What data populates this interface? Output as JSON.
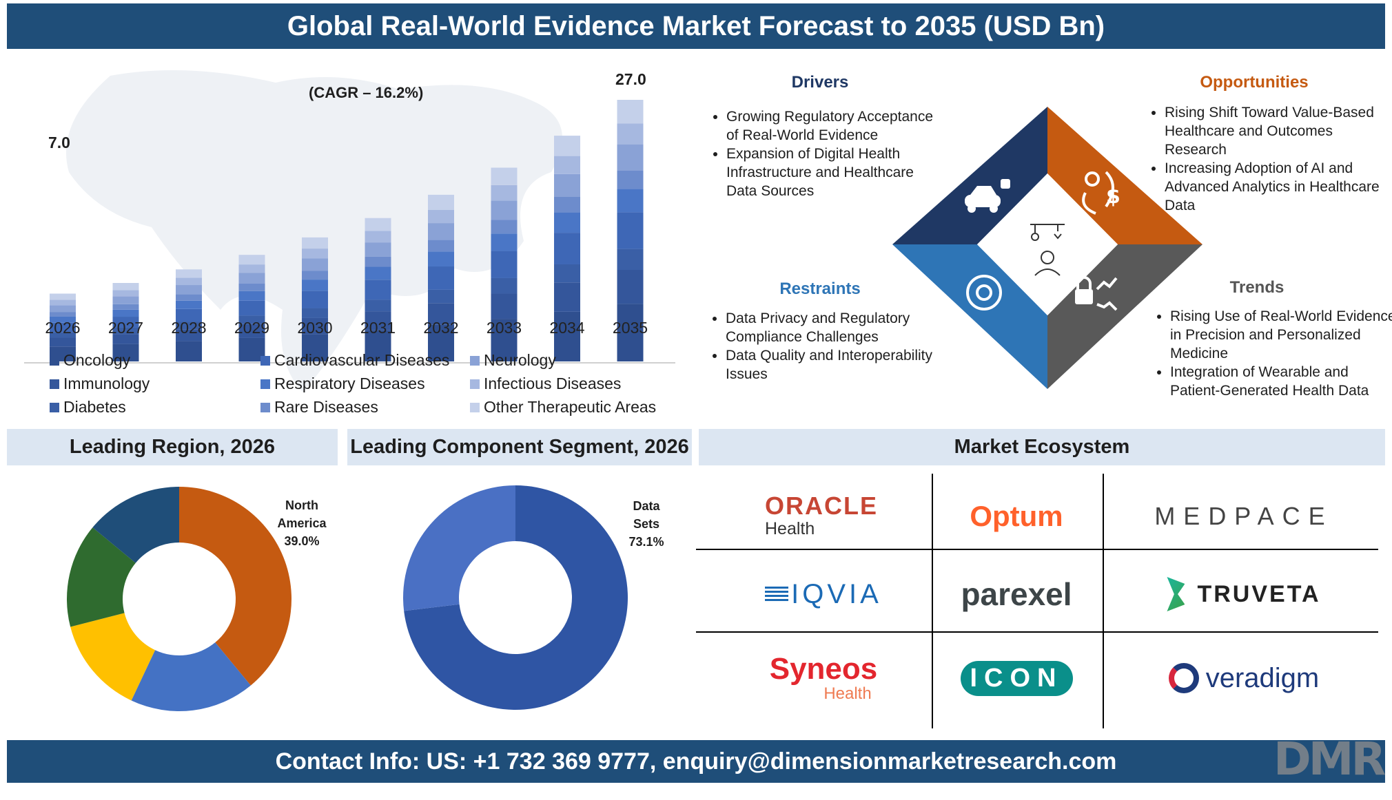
{
  "header": {
    "title": "Global Real-World Evidence Market Forecast to 2035 (USD Bn)"
  },
  "footer": {
    "contact": "Contact Info: US: +1 732 369 9777, enquiry@dimensionmarketresearch.com",
    "brand_logo": "DMR"
  },
  "chart_data": [
    {
      "type": "bar",
      "stacked": true,
      "categories": [
        "2026",
        "2027",
        "2028",
        "2029",
        "2030",
        "2031",
        "2032",
        "2033",
        "2034",
        "2035"
      ],
      "totals": [
        7.0,
        8.1,
        9.5,
        11.0,
        12.8,
        14.8,
        17.2,
        20.0,
        23.3,
        27.0
      ],
      "first_label": "7.0",
      "last_label": "27.0",
      "annotation": "(CAGR – 16.2%)",
      "series_names": [
        "Oncology",
        "Immunology",
        "Diabetes",
        "Cardiovascular Diseases",
        "Respiratory Diseases",
        "Rare Diseases",
        "Neurology",
        "Infectious Diseases",
        "Other Therapeutic Areas"
      ],
      "series_shares": [
        0.22,
        0.13,
        0.08,
        0.14,
        0.09,
        0.07,
        0.1,
        0.08,
        0.09
      ],
      "series_colors": [
        "#2f4f8f",
        "#34569b",
        "#3a5fa6",
        "#3e67b6",
        "#4a76c6",
        "#6d8ccc",
        "#8aa2d6",
        "#a6b8e0",
        "#c4d0ea"
      ],
      "legend_placement": "bottom",
      "grid": false
    },
    {
      "type": "pie",
      "donut": true,
      "title": "Leading Region, 2026",
      "slices": [
        {
          "name": "North America",
          "value": 39.0,
          "color": "#c55a11"
        },
        {
          "name": "",
          "value": 18.0,
          "color": "#4472c4"
        },
        {
          "name": "",
          "value": 14.0,
          "color": "#ffc000"
        },
        {
          "name": "",
          "value": 15.0,
          "color": "#2f6b2f"
        },
        {
          "name": "",
          "value": 14.0,
          "color": "#1f4e79"
        }
      ],
      "label_title": "North",
      "label_title2": "America",
      "label_value": "39.0%"
    },
    {
      "type": "pie",
      "donut": true,
      "title": "Leading Component Segment, 2026",
      "slices": [
        {
          "name": "Data Sets",
          "value": 73.1,
          "color": "#2f55a4"
        },
        {
          "name": "",
          "value": 26.9,
          "color": "#4a70c4"
        }
      ],
      "label_title": "Data",
      "label_title2": "Sets",
      "label_value": "73.1%"
    }
  ],
  "dynamics": {
    "drivers": {
      "title": "Drivers",
      "color": "#1f3864",
      "items": [
        "Growing Regulatory Acceptance of Real-World Evidence",
        "Expansion of Digital Health Infrastructure and Healthcare Data Sources"
      ]
    },
    "opportunities": {
      "title": "Opportunities",
      "color": "#c55a11",
      "items": [
        "Rising Shift Toward Value-Based Healthcare and Outcomes Research",
        "Increasing Adoption of AI and Advanced Analytics in Healthcare Data"
      ]
    },
    "restraints": {
      "title": "Restraints",
      "color": "#2e75b6",
      "items": [
        "Data Privacy and Regulatory Compliance Challenges",
        "Data Quality and Interoperability Issues"
      ]
    },
    "trends": {
      "title": "Trends",
      "color": "#555555",
      "items": [
        "Rising Use of Real-World Evidence in Precision and Personalized Medicine",
        "Integration of Wearable and Patient-Generated Health Data"
      ]
    },
    "diamond_colors": {
      "top_left": "#1f3864",
      "top_right": "#c55a11",
      "bottom_left": "#2e75b6",
      "bottom_right": "#595959"
    }
  },
  "ecosystem": {
    "title": "Market Ecosystem",
    "logos": [
      {
        "name": "ORACLE",
        "sub": "Health"
      },
      {
        "name": "Optum"
      },
      {
        "name": "MEDPACE"
      },
      {
        "name": "IQVIA"
      },
      {
        "name": "parexel"
      },
      {
        "name": "TRUVETA"
      },
      {
        "name": "Syneos",
        "sub": "Health"
      },
      {
        "name": "ICON"
      },
      {
        "name": "veradigm"
      }
    ]
  }
}
